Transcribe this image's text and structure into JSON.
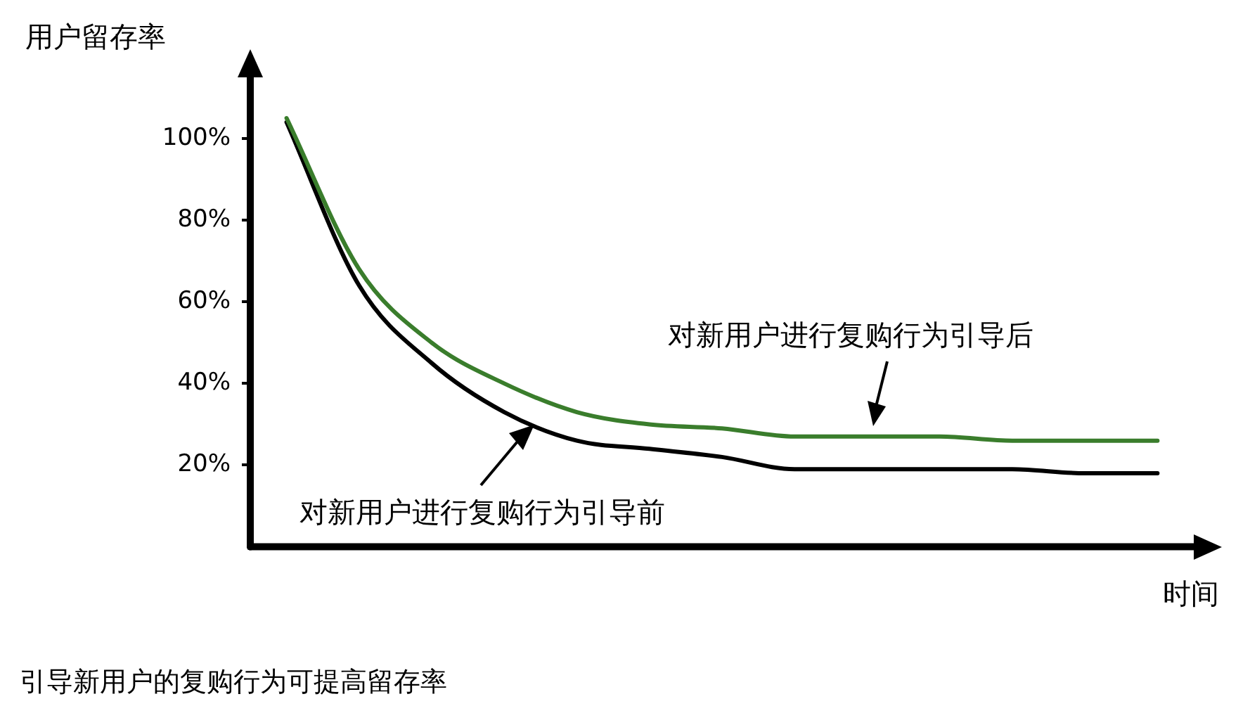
{
  "chart_data": {
    "type": "line",
    "ylabel": "用户留存率",
    "xlabel": "时间",
    "categories": [
      null,
      null,
      null,
      null,
      null,
      null,
      null,
      null,
      null,
      null,
      null,
      null,
      null
    ],
    "series": [
      {
        "name": "对新用户进行复购行为引导后",
        "color": "#3a7d2c",
        "values": [
          105,
          68,
          50,
          40,
          33,
          30,
          29,
          27,
          27,
          27,
          26,
          26,
          26
        ]
      },
      {
        "name": "对新用户进行复购行为引导前",
        "color": "#000000",
        "values": [
          104,
          64,
          45,
          33,
          26,
          24,
          22,
          19,
          19,
          19,
          19,
          18,
          18
        ]
      }
    ],
    "ylim": [
      0,
      115
    ],
    "yticks": [
      {
        "value": 20,
        "label": "20%"
      },
      {
        "value": 40,
        "label": "40%"
      },
      {
        "value": 60,
        "label": "60%"
      },
      {
        "value": 80,
        "label": "80%"
      },
      {
        "value": 100,
        "label": "100%"
      }
    ],
    "grid": false,
    "marker": "none",
    "line_style": "solid",
    "tick_labels": "y",
    "annotations": [
      "引导新用户的复购行为可提高留存率"
    ]
  }
}
